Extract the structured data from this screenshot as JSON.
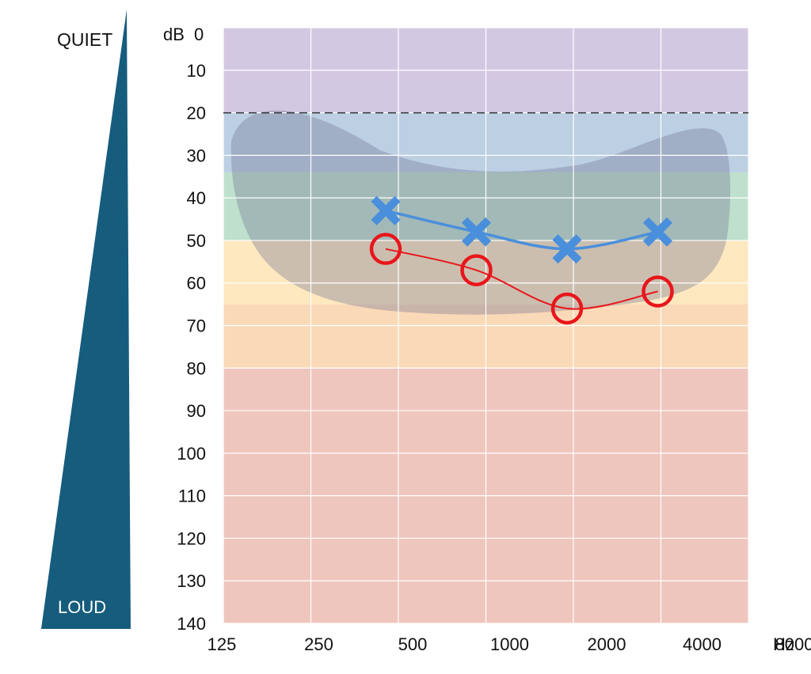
{
  "loudness_scale": {
    "top_label": "QUIET",
    "bottom_label": "LOUD",
    "color": "#165c7d"
  },
  "chart_data": {
    "type": "line",
    "title": "",
    "x_unit": "Hz",
    "y_unit": "dB",
    "x_scale": "log2",
    "x_ticks": [
      125,
      250,
      500,
      1000,
      2000,
      4000,
      8000
    ],
    "x_tick_labels": [
      "125",
      "250",
      "500",
      "1000",
      "2000",
      "4000",
      "8000"
    ],
    "y_ticks": [
      0,
      10,
      20,
      30,
      40,
      50,
      60,
      70,
      80,
      90,
      100,
      110,
      120,
      130,
      140
    ],
    "y_tick_labels": [
      "0",
      "10",
      "20",
      "30",
      "40",
      "50",
      "60",
      "70",
      "80",
      "90",
      "100",
      "110",
      "120",
      "130",
      "140"
    ],
    "ylim": [
      0,
      140
    ],
    "y_inverted": true,
    "grid": true,
    "bands": [
      {
        "from": 0,
        "to": 20,
        "color": "#d3c8e2"
      },
      {
        "from": 20,
        "to": 34,
        "color": "#bccfe3"
      },
      {
        "from": 34,
        "to": 50,
        "color": "#bfe0cc"
      },
      {
        "from": 50,
        "to": 65,
        "color": "#fde8c0"
      },
      {
        "from": 65,
        "to": 80,
        "color": "#fad9b8"
      },
      {
        "from": 80,
        "to": 140,
        "color": "#efc6be"
      }
    ],
    "reference_line": {
      "y": 20,
      "style": "dashed"
    },
    "series": [
      {
        "marker": "x",
        "color": "#4a8fdc",
        "x": [
          500,
          1000,
          2000,
          4000
        ],
        "y": [
          43,
          48,
          52,
          48
        ]
      },
      {
        "marker": "o",
        "color": "#e8161b",
        "x": [
          500,
          1000,
          2000,
          4000
        ],
        "y": [
          52,
          57,
          66,
          62
        ]
      }
    ]
  }
}
